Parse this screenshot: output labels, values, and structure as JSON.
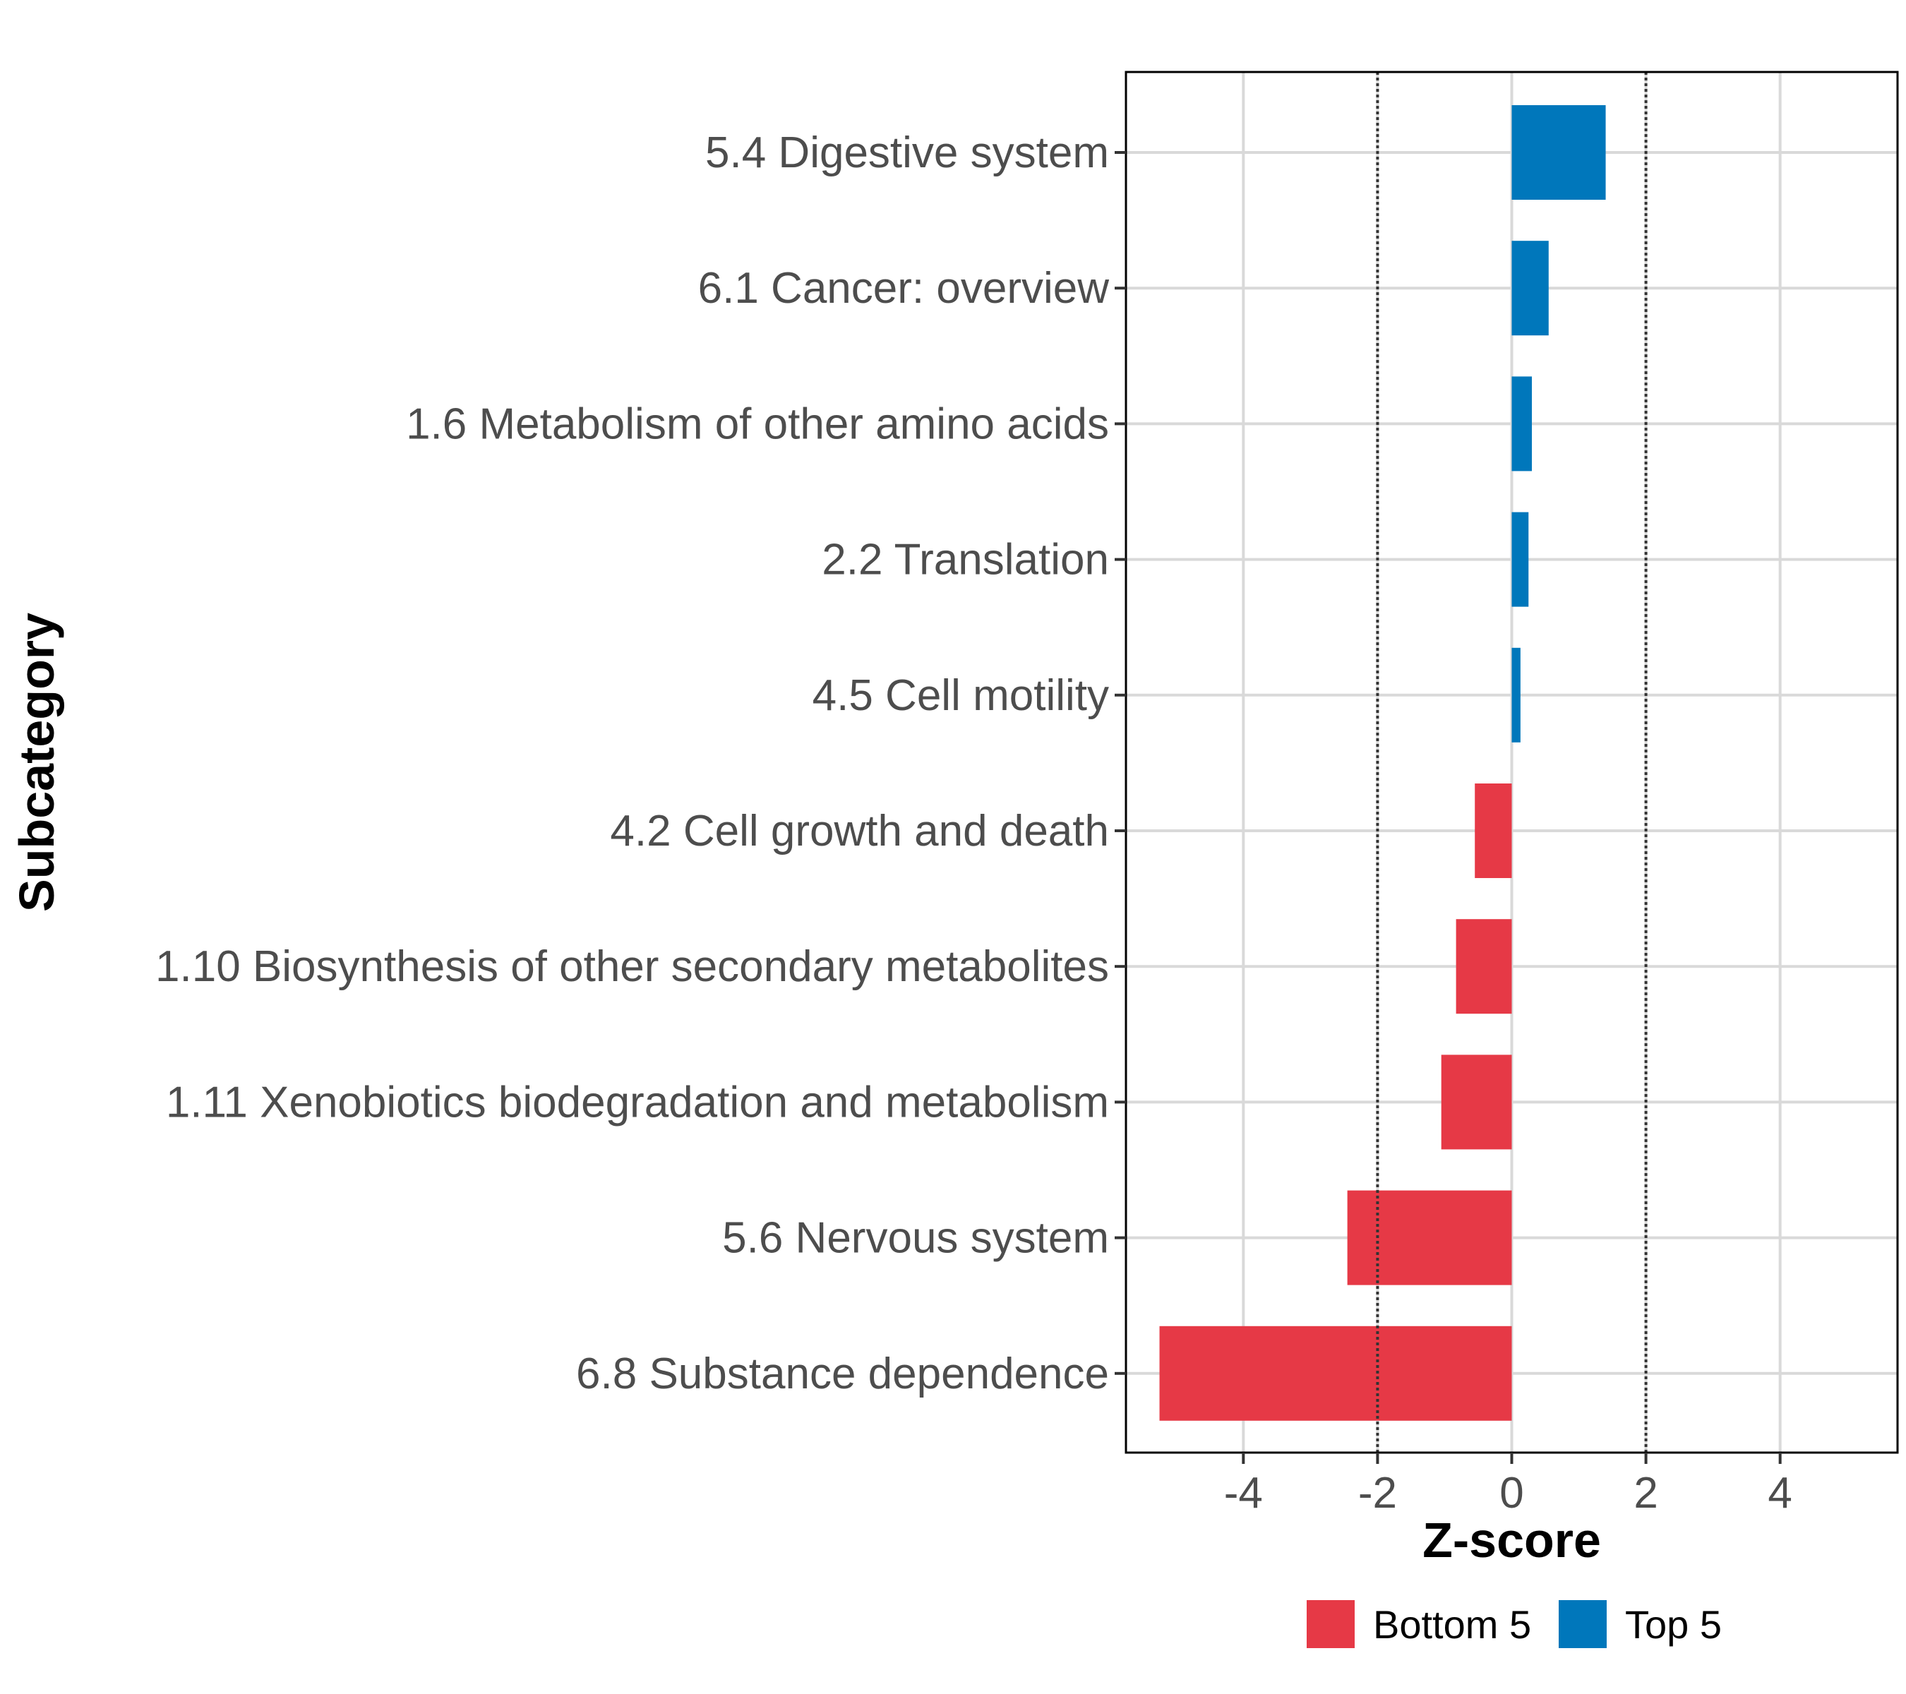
{
  "chart_data": {
    "type": "bar",
    "orientation": "horizontal",
    "title": "",
    "xlabel": "Z-score",
    "ylabel": "Subcategory",
    "xlim": [
      -5.75,
      5.75
    ],
    "xticks": [
      -4,
      -2,
      0,
      2,
      4
    ],
    "xtick_labels": [
      "-4",
      "-2",
      "0",
      "2",
      "4"
    ],
    "reference_lines": [
      -2,
      2
    ],
    "grid": true,
    "categories": [
      "5.4 Digestive system",
      "6.1 Cancer: overview",
      "1.6 Metabolism of other amino acids",
      "2.2 Translation",
      "4.5 Cell motility",
      "4.2 Cell growth and death",
      "1.10 Biosynthesis of other secondary metabolites",
      "1.11 Xenobiotics biodegradation and metabolism",
      "5.6 Nervous system",
      "6.8 Substance dependence"
    ],
    "values": [
      1.4,
      0.55,
      0.3,
      0.25,
      0.13,
      -0.55,
      -0.83,
      -1.05,
      -2.45,
      -5.25
    ],
    "groups": [
      "Top 5",
      "Top 5",
      "Top 5",
      "Top 5",
      "Top 5",
      "Bottom 5",
      "Bottom 5",
      "Bottom 5",
      "Bottom 5",
      "Bottom 5"
    ],
    "legend": {
      "position": "bottom",
      "entries": [
        {
          "label": "Bottom 5",
          "color": "#e63946"
        },
        {
          "label": "Top 5",
          "color": "#0077bb"
        }
      ]
    }
  }
}
